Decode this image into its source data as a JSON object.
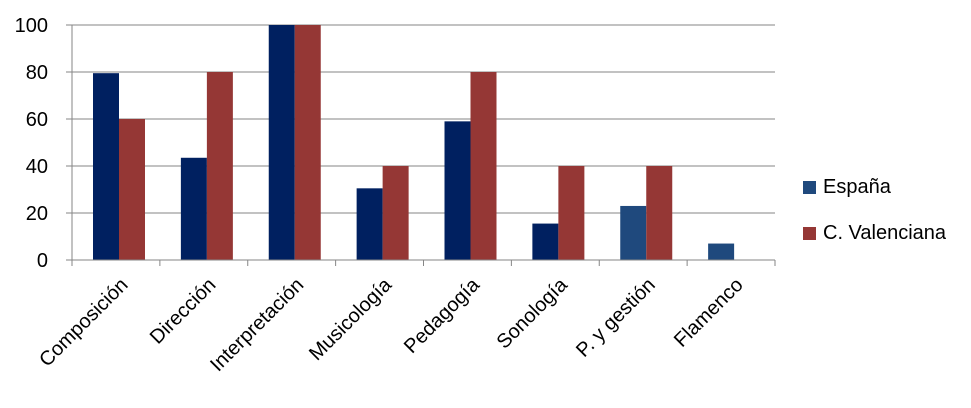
{
  "chart_data": {
    "type": "bar",
    "categories": [
      "Composición",
      "Dirección",
      "Interpretación",
      "Musicología",
      "Pedagogía",
      "Sonología",
      "P. y gestión",
      "Flamenco"
    ],
    "series": [
      {
        "name": "España",
        "values": [
          79.5,
          43.5,
          100,
          30.5,
          59,
          15.5,
          23,
          7
        ],
        "color": "#002060",
        "color_alt": "#1f497d"
      },
      {
        "name": "C. Valenciana",
        "values": [
          60,
          80,
          100,
          40,
          80,
          40,
          40,
          0
        ],
        "color": "#953735"
      }
    ],
    "ylim": [
      0,
      100
    ],
    "yticks": [
      0,
      20,
      40,
      60,
      80,
      100
    ],
    "grid": true,
    "legend_position": "right",
    "title": "",
    "xlabel": "",
    "ylabel": "",
    "legend": {
      "items": [
        {
          "label": "España",
          "color": "#1f497d"
        },
        {
          "label": "C. Valenciana",
          "color": "#953735"
        }
      ]
    }
  }
}
